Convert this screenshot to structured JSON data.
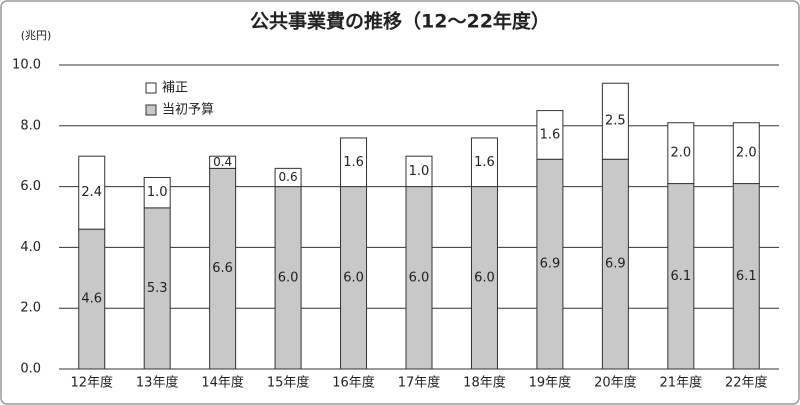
{
  "chart_data": {
    "type": "stacked_bar",
    "title": "公共事業費の推移（12～22年度）",
    "y_unit_label": "(兆円)",
    "categories": [
      "12年度",
      "13年度",
      "14年度",
      "15年度",
      "16年度",
      "17年度",
      "18年度",
      "19年度",
      "20年度",
      "21年度",
      "22年度"
    ],
    "series": [
      {
        "name": "当初予算",
        "color": "#c8c8c8",
        "values": [
          4.6,
          5.3,
          6.6,
          6.0,
          6.0,
          6.0,
          6.0,
          6.9,
          6.9,
          6.1,
          6.1
        ],
        "value_labels": [
          "4.6",
          "5.3",
          "6.6",
          "6.0",
          "6.0",
          "6.0",
          "6.0",
          "6.9",
          "6.9",
          "6.1",
          "6.1"
        ]
      },
      {
        "name": "補正",
        "color": "#ffffff",
        "values": [
          2.4,
          1.0,
          0.4,
          0.6,
          1.6,
          1.0,
          1.6,
          1.6,
          2.5,
          2.0,
          2.0
        ],
        "value_labels": [
          "2.4",
          "1.0",
          "0.4",
          "0.6",
          "1.6",
          "1.0",
          "1.6",
          "1.6",
          "2.5",
          "2.0",
          "2.0"
        ]
      }
    ],
    "ylim": [
      0,
      10
    ],
    "yticks": [
      {
        "value": 0,
        "label": "0.0"
      },
      {
        "value": 2,
        "label": "2.0"
      },
      {
        "value": 4,
        "label": "4.0"
      },
      {
        "value": 6,
        "label": "6.0"
      },
      {
        "value": 8,
        "label": "8.0"
      },
      {
        "value": 10,
        "label": "10.0"
      }
    ],
    "grid": true,
    "legend": "top-left"
  }
}
